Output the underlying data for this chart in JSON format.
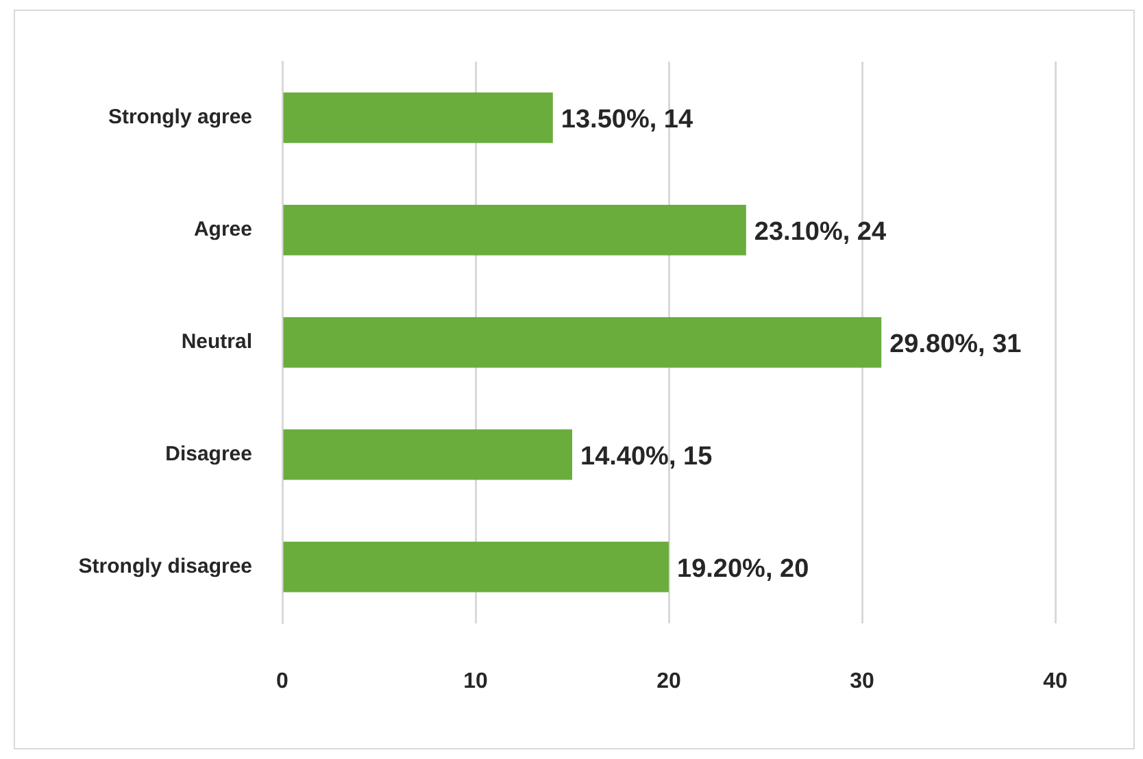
{
  "chart_data": {
    "type": "bar",
    "orientation": "horizontal",
    "categories": [
      "Strongly agree",
      "Agree",
      "Neutral",
      "Disagree",
      "Strongly disagree"
    ],
    "values": [
      14,
      24,
      31,
      15,
      20
    ],
    "value_labels": [
      "13.50%, 14",
      "23.10%, 24",
      "29.80%, 31",
      "14.40%, 15",
      "19.20%, 20"
    ],
    "color": "#6aad3d",
    "xlim": [
      0,
      40
    ],
    "xticks": [
      0,
      10,
      20,
      30,
      40
    ],
    "grid": "x"
  }
}
